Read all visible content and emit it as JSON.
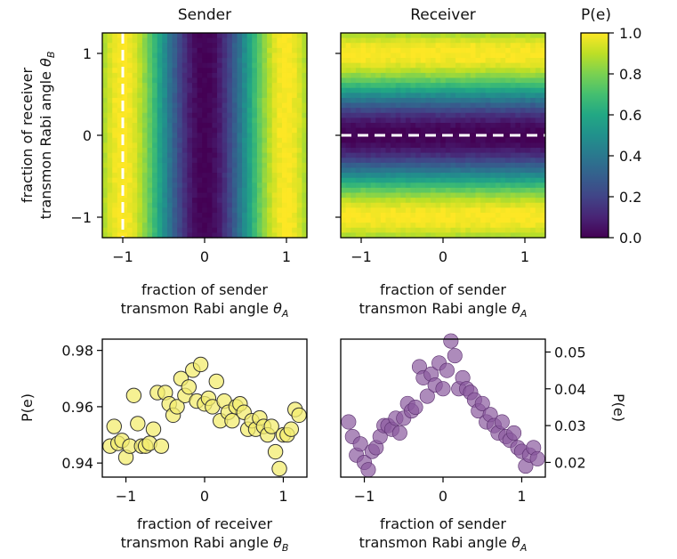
{
  "chart_data": [
    {
      "id": "sender",
      "type": "heatmap",
      "title": "Sender",
      "xlabel": [
        "fraction of sender",
        "transmon Rabi angle θ_A"
      ],
      "ylabel": [
        "fraction of receiver",
        "transmon Rabi angle θ_B"
      ],
      "xlim": [
        -1.25,
        1.25
      ],
      "ylim": [
        -1.25,
        1.25
      ],
      "xticks": [
        -1,
        0,
        1
      ],
      "yticks": [
        -1,
        0,
        1
      ],
      "xtick_labels": [
        "−1",
        "0",
        "1"
      ],
      "ytick_labels": [
        "−1",
        "0",
        "1"
      ],
      "grid": 41,
      "value_fn": "P(e) = sin²(π·θ_A/2), independent of θ_B",
      "colormap": "viridis",
      "clim": [
        0,
        1
      ],
      "marker_line": {
        "orientation": "vertical",
        "x": -1,
        "style": "white dashed"
      }
    },
    {
      "id": "receiver",
      "type": "heatmap",
      "title": "Receiver",
      "xlabel": [
        "fraction of sender",
        "transmon Rabi angle θ_A"
      ],
      "xlim": [
        -1.25,
        1.25
      ],
      "ylim": [
        -1.25,
        1.25
      ],
      "xticks": [
        -1,
        0,
        1
      ],
      "xtick_labels": [
        "−1",
        "0",
        "1"
      ],
      "grid": 41,
      "value_fn": "P(e) = sin²(π·θ_B/2), independent of θ_A",
      "colormap": "viridis",
      "clim": [
        0,
        1
      ],
      "marker_line": {
        "orientation": "horizontal",
        "y": 0,
        "style": "white dashed"
      }
    },
    {
      "id": "colorbar",
      "type": "colorbar",
      "title": "P(e)",
      "colormap": "viridis",
      "range": [
        0,
        1
      ],
      "ticks": [
        0.0,
        0.2,
        0.4,
        0.6,
        0.8,
        1.0
      ],
      "tick_labels": [
        "0.0",
        "0.2",
        "0.4",
        "0.6",
        "0.8",
        "1.0"
      ]
    },
    {
      "id": "sender_cut",
      "type": "scatter",
      "xlabel": [
        "fraction of receiver",
        "transmon Rabi angle θ_B"
      ],
      "ylabel": "P(e)",
      "xlim": [
        -1.3,
        1.3
      ],
      "ylim": [
        0.935,
        0.984
      ],
      "xticks": [
        -1,
        0,
        1
      ],
      "yticks": [
        0.94,
        0.96,
        0.98
      ],
      "xtick_labels": [
        "−1",
        "0",
        "1"
      ],
      "ytick_labels": [
        "0.94",
        "0.96",
        "0.98"
      ],
      "color": "#f3ec6f",
      "edge_color": "#444444",
      "x": [
        -1.2,
        -1.15,
        -1.1,
        -1.05,
        -1.0,
        -0.95,
        -0.9,
        -0.85,
        -0.8,
        -0.75,
        -0.7,
        -0.65,
        -0.6,
        -0.55,
        -0.5,
        -0.45,
        -0.4,
        -0.35,
        -0.3,
        -0.25,
        -0.2,
        -0.15,
        -0.1,
        -0.05,
        0.0,
        0.05,
        0.1,
        0.15,
        0.2,
        0.25,
        0.3,
        0.35,
        0.4,
        0.45,
        0.5,
        0.55,
        0.6,
        0.65,
        0.7,
        0.75,
        0.8,
        0.85,
        0.9,
        0.95,
        1.0,
        1.05,
        1.1,
        1.15,
        1.2
      ],
      "y": [
        0.946,
        0.953,
        0.947,
        0.948,
        0.942,
        0.946,
        0.964,
        0.954,
        0.946,
        0.946,
        0.947,
        0.952,
        0.965,
        0.946,
        0.965,
        0.961,
        0.957,
        0.96,
        0.97,
        0.964,
        0.967,
        0.973,
        0.962,
        0.975,
        0.961,
        0.963,
        0.96,
        0.969,
        0.955,
        0.962,
        0.958,
        0.955,
        0.96,
        0.961,
        0.958,
        0.952,
        0.955,
        0.952,
        0.956,
        0.953,
        0.95,
        0.953,
        0.944,
        0.938,
        0.95,
        0.95,
        0.952,
        0.959,
        0.957
      ],
      "markers_y_alt": [
        0.95
      ]
    },
    {
      "id": "receiver_cut",
      "type": "scatter",
      "xlabel": [
        "fraction of sender",
        "transmon Rabi angle θ_A"
      ],
      "ylabel": "P(e)",
      "xlim": [
        -1.3,
        1.3
      ],
      "ylim": [
        0.016,
        0.0535
      ],
      "xticks": [
        -1,
        0,
        1
      ],
      "yticks": [
        0.02,
        0.03,
        0.04,
        0.05
      ],
      "xtick_labels": [
        "−1",
        "0",
        "1"
      ],
      "ytick_labels": [
        "0.02",
        "0.03",
        "0.04",
        "0.05"
      ],
      "color": "#8a5a9e",
      "x": [
        -1.2,
        -1.15,
        -1.1,
        -1.05,
        -1.0,
        -0.95,
        -0.9,
        -0.85,
        -0.8,
        -0.75,
        -0.7,
        -0.65,
        -0.6,
        -0.55,
        -0.5,
        -0.45,
        -0.4,
        -0.35,
        -0.3,
        -0.25,
        -0.2,
        -0.15,
        -0.1,
        -0.05,
        0.0,
        0.05,
        0.1,
        0.15,
        0.2,
        0.25,
        0.3,
        0.35,
        0.4,
        0.45,
        0.5,
        0.55,
        0.6,
        0.65,
        0.7,
        0.75,
        0.8,
        0.85,
        0.9,
        0.95,
        1.0,
        1.05,
        1.1,
        1.15,
        1.2
      ],
      "y": [
        0.031,
        0.027,
        0.022,
        0.025,
        0.02,
        0.018,
        0.023,
        0.024,
        0.027,
        0.03,
        0.03,
        0.029,
        0.032,
        0.028,
        0.032,
        0.036,
        0.034,
        0.035,
        0.046,
        0.043,
        0.038,
        0.044,
        0.041,
        0.047,
        0.04,
        0.045,
        0.053,
        0.049,
        0.04,
        0.043,
        0.04,
        0.039,
        0.037,
        0.034,
        0.036,
        0.031,
        0.033,
        0.03,
        0.028,
        0.031,
        0.027,
        0.026,
        0.028,
        0.024,
        0.023,
        0.019,
        0.022,
        0.024,
        0.021
      ]
    }
  ]
}
